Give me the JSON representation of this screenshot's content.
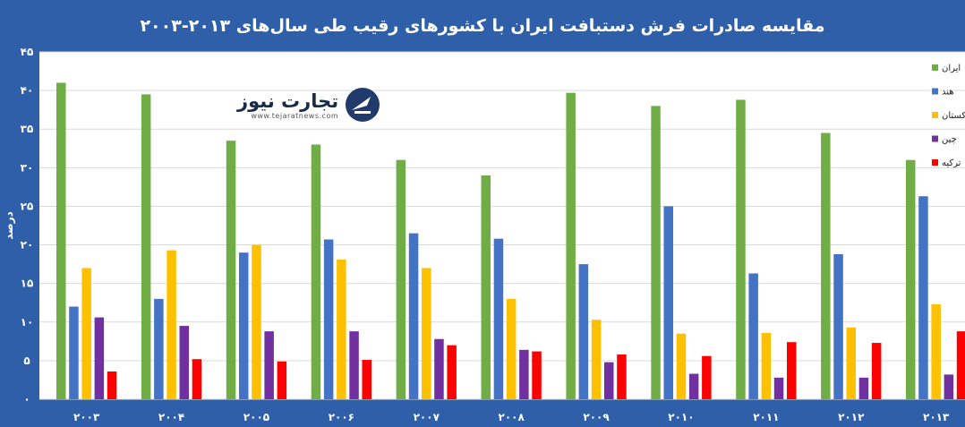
{
  "title": "مقایسه صادرات فرش دستبافت ایران با کشورهای رقیب طی سال‌های ۲۰۱۳-۲۰۰۳",
  "watermark": {
    "name": "تجارت نیوز",
    "url": "www.tejaratnews.com"
  },
  "colors": {
    "background": "#2f5fa8",
    "plot": "#ffffff",
    "grid": "#d9d9d9"
  },
  "chart_data": {
    "type": "bar",
    "title": "مقایسه صادرات فرش دستبافت ایران با کشورهای رقیب طی سال‌های ۲۰۱۳-۲۰۰۳",
    "ylabel": "درصد",
    "xlabel": "",
    "ylim": [
      0,
      45
    ],
    "yticks": [
      "۰",
      "۵",
      "۱۰",
      "۱۵",
      "۲۰",
      "۲۵",
      "۳۰",
      "۳۵",
      "۴۰",
      "۴۵"
    ],
    "grid": true,
    "legend_position": "right",
    "categories": [
      "۲۰۰۳",
      "۲۰۰۴",
      "۲۰۰۵",
      "۲۰۰۶",
      "۲۰۰۷",
      "۲۰۰۸",
      "۲۰۰۹",
      "۲۰۱۰",
      "۲۰۱۱",
      "۲۰۱۲",
      "۲۰۱۳"
    ],
    "series": [
      {
        "name": "ایران",
        "color": "#70ad47",
        "values": [
          41,
          39.5,
          33.5,
          33,
          31,
          29,
          39.7,
          38,
          38.8,
          34.5,
          31
        ]
      },
      {
        "name": "هند",
        "color": "#4472c4",
        "values": [
          12,
          13,
          19,
          20.7,
          21.5,
          20.8,
          17.5,
          25,
          16.3,
          18.8,
          26.3
        ]
      },
      {
        "name": "پاکستان",
        "color": "#ffc000",
        "values": [
          17,
          19.3,
          20,
          18.1,
          17,
          13,
          10.3,
          8.5,
          8.6,
          9.3,
          12.3
        ]
      },
      {
        "name": "چین",
        "color": "#7030a0",
        "values": [
          10.6,
          9.5,
          8.8,
          8.8,
          7.8,
          6.4,
          4.8,
          3.3,
          2.8,
          2.8,
          3.2
        ]
      },
      {
        "name": "ترکیه",
        "color": "#ff0000",
        "values": [
          3.6,
          5.2,
          4.9,
          5.1,
          7,
          6.2,
          5.8,
          5.6,
          7.4,
          7.3,
          8.8
        ]
      }
    ]
  }
}
